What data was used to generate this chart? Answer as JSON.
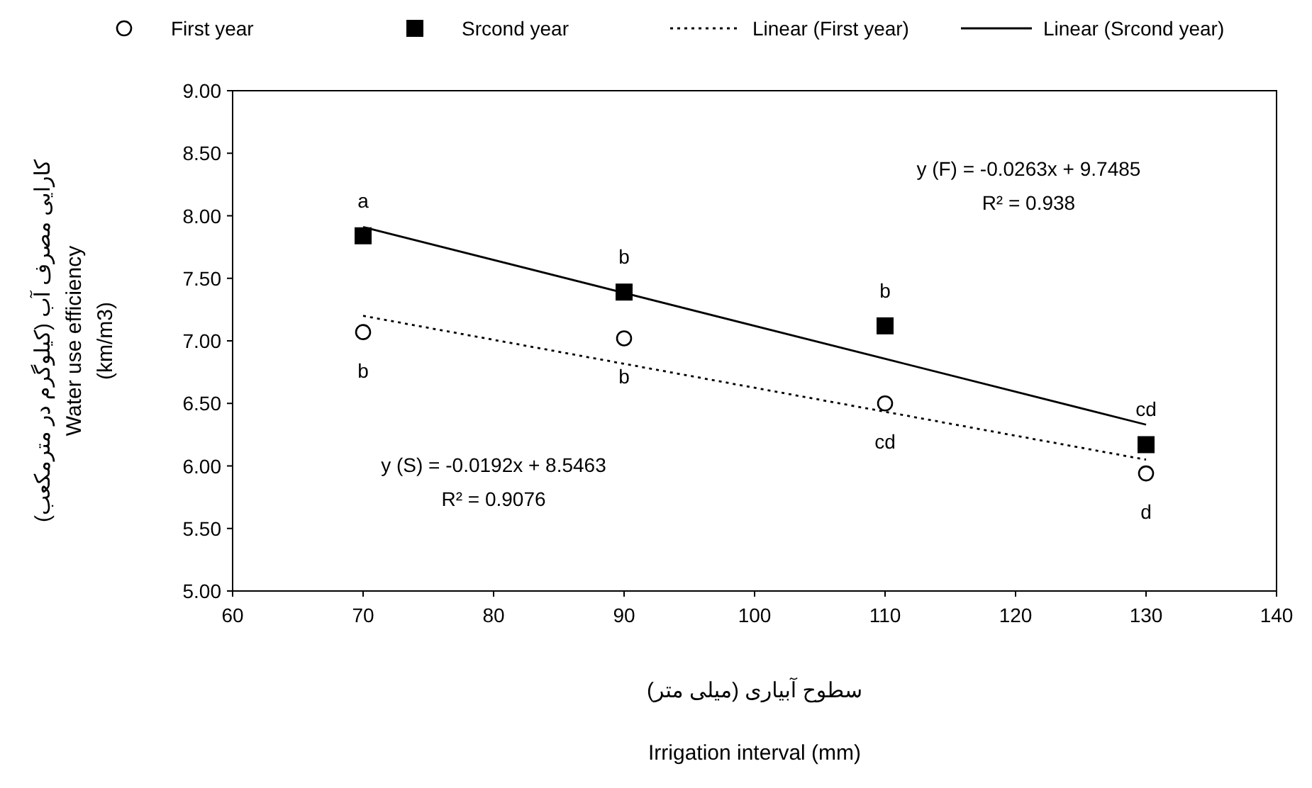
{
  "chart_data": {
    "type": "scatter",
    "xlabel": "سطوح آبیاری (میلی متر)\nIrrigation interval (mm)",
    "ylabel": "کارایی مصرف آب (کیلوگرم در مترمکعب)\nWater use efficiency\n(km/m3)",
    "xlim": [
      60,
      140
    ],
    "xticks": [
      60,
      70,
      80,
      90,
      100,
      110,
      120,
      130,
      140
    ],
    "ylim": [
      5,
      9
    ],
    "yticks": [
      {
        "value": 5,
        "label": "5.00"
      },
      {
        "value": 5.5,
        "label": "5.50"
      },
      {
        "value": 6,
        "label": "6.00"
      },
      {
        "value": 6.5,
        "label": "6.50"
      },
      {
        "value": 7,
        "label": "7.00"
      },
      {
        "value": 7.5,
        "label": "7.50"
      },
      {
        "value": 8,
        "label": "8.00"
      },
      {
        "value": 8.5,
        "label": "8.50"
      },
      {
        "value": 9,
        "label": "9.00"
      }
    ],
    "grid": false,
    "legend": "top",
    "series": [
      {
        "name": "First year",
        "type": "scatter",
        "marker": "circle",
        "color": "#000000",
        "x": [
          70,
          90,
          110,
          130
        ],
        "values": [
          7.07,
          7.02,
          6.5,
          5.94
        ]
      },
      {
        "name": "Srcond year",
        "type": "scatter",
        "marker": "square",
        "color": "#000000",
        "x": [
          70,
          90,
          110,
          130
        ],
        "values": [
          7.84,
          7.39,
          7.12,
          6.17
        ]
      },
      {
        "name": "Linear (First year)",
        "type": "line",
        "line_style": "dotted",
        "color": "#000000",
        "x": [
          70,
          130
        ],
        "values": [
          7.2,
          6.05
        ]
      },
      {
        "name": "Linear (Srcond year)",
        "type": "line",
        "line_style": "solid",
        "color": "#000000",
        "x": [
          70,
          130
        ],
        "values": [
          7.91,
          6.33
        ]
      }
    ],
    "annotations": [
      "y (F) = -0.0263x + 9.7485\nR² = 0.938",
      "y (S) = -0.0192x + 8.5463\nR² = 0.9076",
      {
        "text": "a",
        "x": 70,
        "y": 7.84
      },
      {
        "text": "b",
        "x": 90,
        "y": 7.39
      },
      {
        "text": "b",
        "x": 110,
        "y": 7.12
      },
      {
        "text": "cd",
        "x": 130,
        "y": 6.17
      },
      {
        "text": "b",
        "x": 70,
        "y": 7.07
      },
      {
        "text": "b",
        "x": 90,
        "y": 7.02
      },
      {
        "text": "cd",
        "x": 110,
        "y": 6.5
      },
      {
        "text": "d",
        "x": 130,
        "y": 5.94
      }
    ]
  }
}
